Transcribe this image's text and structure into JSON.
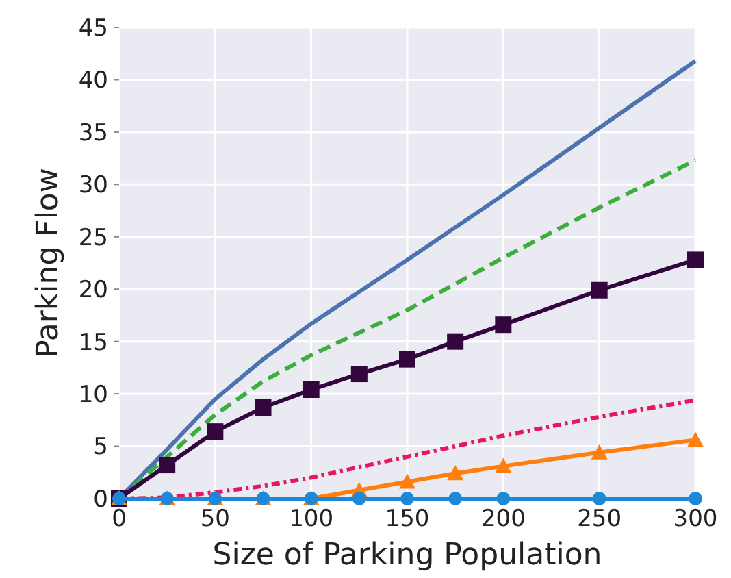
{
  "chart_data": {
    "type": "line",
    "xlabel": "Size of Parking Population",
    "ylabel": "Parking Flow",
    "xlim": [
      0,
      300
    ],
    "xticks": [
      0,
      50,
      100,
      150,
      200,
      250,
      300
    ],
    "ylim": [
      0,
      45
    ],
    "yticks": [
      0,
      5,
      10,
      15,
      20,
      25,
      30,
      35,
      40,
      45
    ],
    "grid": true,
    "series": [
      {
        "color": "#4c72b0",
        "line_style": "solid",
        "marker": "none",
        "x": [
          0,
          25,
          50,
          75,
          100,
          150,
          200,
          250,
          300
        ],
        "values": [
          0,
          4.7,
          9.5,
          13.3,
          16.7,
          22.8,
          29,
          35.4,
          41.8
        ]
      },
      {
        "color": "#3cae3c",
        "line_style": "dashed",
        "marker": "none",
        "x": [
          0,
          25,
          50,
          75,
          100,
          150,
          200,
          250,
          300
        ],
        "values": [
          0,
          4,
          8,
          11.2,
          13.7,
          18,
          23,
          27.8,
          32.3
        ]
      },
      {
        "color": "#33073d",
        "line_style": "solid",
        "marker": "square",
        "x": [
          0,
          25,
          50,
          75,
          100,
          125,
          150,
          175,
          200,
          250,
          300
        ],
        "values": [
          0,
          3.2,
          6.4,
          8.7,
          10.4,
          11.9,
          13.3,
          15,
          16.6,
          19.9,
          22.8
        ]
      },
      {
        "color": "#e8175d",
        "line_style": "dotted",
        "marker": "none",
        "x": [
          0,
          25,
          50,
          75,
          100,
          150,
          200,
          250,
          300
        ],
        "values": [
          0,
          0.1,
          0.6,
          1.2,
          2,
          4,
          6,
          7.8,
          9.4
        ]
      },
      {
        "color": "#ff7f0e",
        "line_style": "solid",
        "marker": "triangle",
        "x": [
          0,
          25,
          50,
          75,
          100,
          125,
          150,
          175,
          200,
          250,
          300
        ],
        "values": [
          0,
          0,
          0,
          0,
          0,
          0.8,
          1.6,
          2.4,
          3.1,
          4.4,
          5.6
        ]
      },
      {
        "color": "#1f88d6",
        "line_style": "solid",
        "marker": "circle",
        "x": [
          0,
          25,
          50,
          75,
          100,
          125,
          150,
          175,
          200,
          250,
          300
        ],
        "values": [
          0,
          0,
          0,
          0,
          0,
          0,
          0,
          0,
          0,
          0,
          0
        ]
      }
    ]
  }
}
